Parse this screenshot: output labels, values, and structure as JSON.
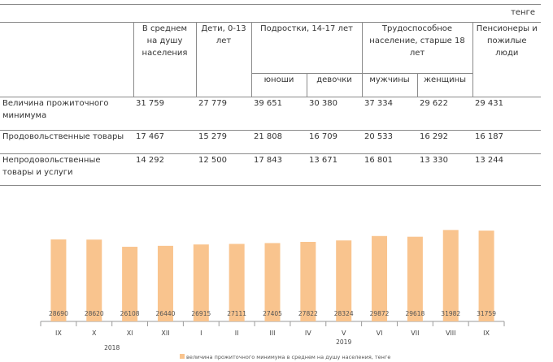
{
  "unit": "тенге",
  "table": {
    "headers": {
      "avg": "В среднем на душу населения",
      "children": "Дети, 0-13 лет",
      "teens": "Подростки, 14-17 лет",
      "teens_boys": "юноши",
      "teens_girls": "девочки",
      "working": "Трудоспособное население, старше 18 лет",
      "working_men": "мужчины",
      "working_women": "женщины",
      "pensioners": "Пенсионеры и пожилые люди"
    },
    "rows": [
      {
        "label": "Величина прожиточного минимума",
        "values": [
          "31 759",
          "27 779",
          "39 651",
          "30 380",
          "37 334",
          "29 622",
          "29 431"
        ]
      },
      {
        "label": "Продовольственные товары",
        "values": [
          "17 467",
          "15 279",
          "21 808",
          "16 709",
          "20 533",
          "16 292",
          "16 187"
        ]
      },
      {
        "label": "Непродовольственные товары и услуги",
        "values": [
          "14 292",
          "12 500",
          "17 843",
          "13 671",
          "16 801",
          "13 330",
          "13 244"
        ]
      }
    ]
  },
  "chart_data": {
    "type": "bar",
    "categories": [
      "IX",
      "X",
      "XI",
      "XII",
      "I",
      "II",
      "III",
      "IV",
      "V",
      "VI",
      "VII",
      "VIII",
      "IX"
    ],
    "years": [
      {
        "label": "2018",
        "from": 0,
        "to": 3
      },
      {
        "label": "2019",
        "from": 4,
        "to": 12
      }
    ],
    "series": [
      {
        "name": "величина прожиточного минимума в среднем на душу населения, тенге",
        "values": [
          28690,
          28620,
          26108,
          26440,
          26915,
          27111,
          27405,
          27822,
          28324,
          29872,
          29618,
          31982,
          31759
        ],
        "color": "#f9c48e"
      }
    ],
    "ylim": [
      0,
      33500
    ],
    "legend": "bottom",
    "grid": false
  }
}
